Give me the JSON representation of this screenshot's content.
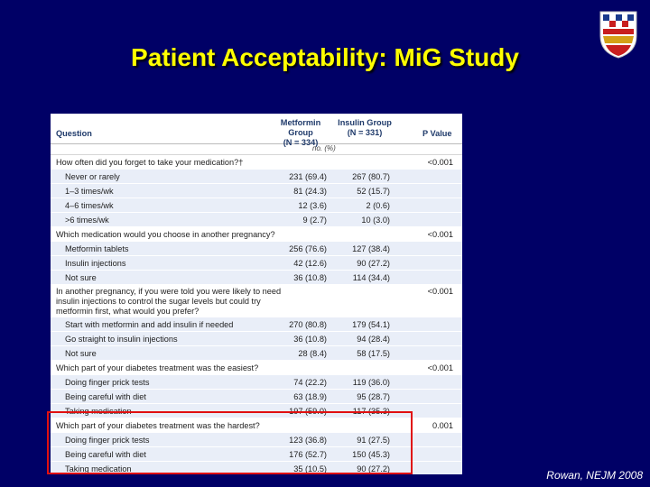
{
  "slide": {
    "title": "Patient Acceptability: MiG Study",
    "citation": "Rowan, NEJM 2008",
    "crest_icon": "heraldic-crest-icon"
  },
  "colors": {
    "background": "#000066",
    "title": "#FFFF00",
    "highlight_border": "#E01010",
    "option_row": "#E9EEF8"
  },
  "table": {
    "headers": {
      "question": "Question",
      "metformin_1": "Metformin Group",
      "metformin_2": "(N = 334)",
      "insulin_1": "Insulin Group",
      "insulin_2": "(N = 331)",
      "pvalue": "P Value",
      "units": "no. (%)"
    },
    "rows": [
      {
        "kind": "q",
        "text": "How often did you forget to take your medication?†",
        "m": "",
        "i": "",
        "p": "<0.001"
      },
      {
        "kind": "o",
        "text": "Never or rarely",
        "m": "231 (69.4)",
        "i": "267 (80.7)",
        "p": ""
      },
      {
        "kind": "o",
        "text": "1–3 times/wk",
        "m": "81 (24.3)",
        "i": "52 (15.7)",
        "p": ""
      },
      {
        "kind": "o",
        "text": "4–6 times/wk",
        "m": "12 (3.6)",
        "i": "2 (0.6)",
        "p": ""
      },
      {
        "kind": "o",
        "text": ">6 times/wk",
        "m": "9 (2.7)",
        "i": "10 (3.0)",
        "p": ""
      },
      {
        "kind": "q",
        "text": "Which medication would you choose in another pregnancy?",
        "m": "",
        "i": "",
        "p": "<0.001"
      },
      {
        "kind": "o",
        "text": "Metformin tablets",
        "m": "256 (76.6)",
        "i": "127 (38.4)",
        "p": ""
      },
      {
        "kind": "o",
        "text": "Insulin injections",
        "m": "42 (12.6)",
        "i": "90 (27.2)",
        "p": ""
      },
      {
        "kind": "o",
        "text": "Not sure",
        "m": "36 (10.8)",
        "i": "114 (34.4)",
        "p": ""
      },
      {
        "kind": "q",
        "tall": true,
        "text": "In another pregnancy, if you were told you were likely to need insulin injections to control the sugar levels but could try metformin first, what would you prefer?",
        "m": "",
        "i": "",
        "p": "<0.001"
      },
      {
        "kind": "o",
        "text": "Start with metformin and add insulin if needed",
        "m": "270 (80.8)",
        "i": "179 (54.1)",
        "p": ""
      },
      {
        "kind": "o",
        "text": "Go straight to insulin injections",
        "m": "36 (10.8)",
        "i": "94 (28.4)",
        "p": ""
      },
      {
        "kind": "o",
        "text": "Not sure",
        "m": "28 (8.4)",
        "i": "58 (17.5)",
        "p": ""
      },
      {
        "kind": "q",
        "text": "Which part of your diabetes treatment was the easiest?",
        "m": "",
        "i": "",
        "p": "<0.001"
      },
      {
        "kind": "o",
        "text": "Doing finger prick tests",
        "m": "74 (22.2)",
        "i": "119 (36.0)",
        "p": ""
      },
      {
        "kind": "o",
        "text": "Being careful with diet",
        "m": "63 (18.9)",
        "i": "95 (28.7)",
        "p": ""
      },
      {
        "kind": "o",
        "text": "Taking medication",
        "m": "197 (59.0)",
        "i": "117 (35.3)",
        "p": ""
      },
      {
        "kind": "q",
        "text": "Which part of your diabetes treatment was the hardest?",
        "m": "",
        "i": "",
        "p": "0.001"
      },
      {
        "kind": "o",
        "text": "Doing finger prick tests",
        "m": "123 (36.8)",
        "i": "91 (27.5)",
        "p": ""
      },
      {
        "kind": "o",
        "text": "Being careful with diet",
        "m": "176 (52.7)",
        "i": "150 (45.3)",
        "p": ""
      },
      {
        "kind": "o",
        "text": "Taking medication",
        "m": "35 (10.5)",
        "i": "90 (27.2)",
        "p": ""
      }
    ]
  }
}
